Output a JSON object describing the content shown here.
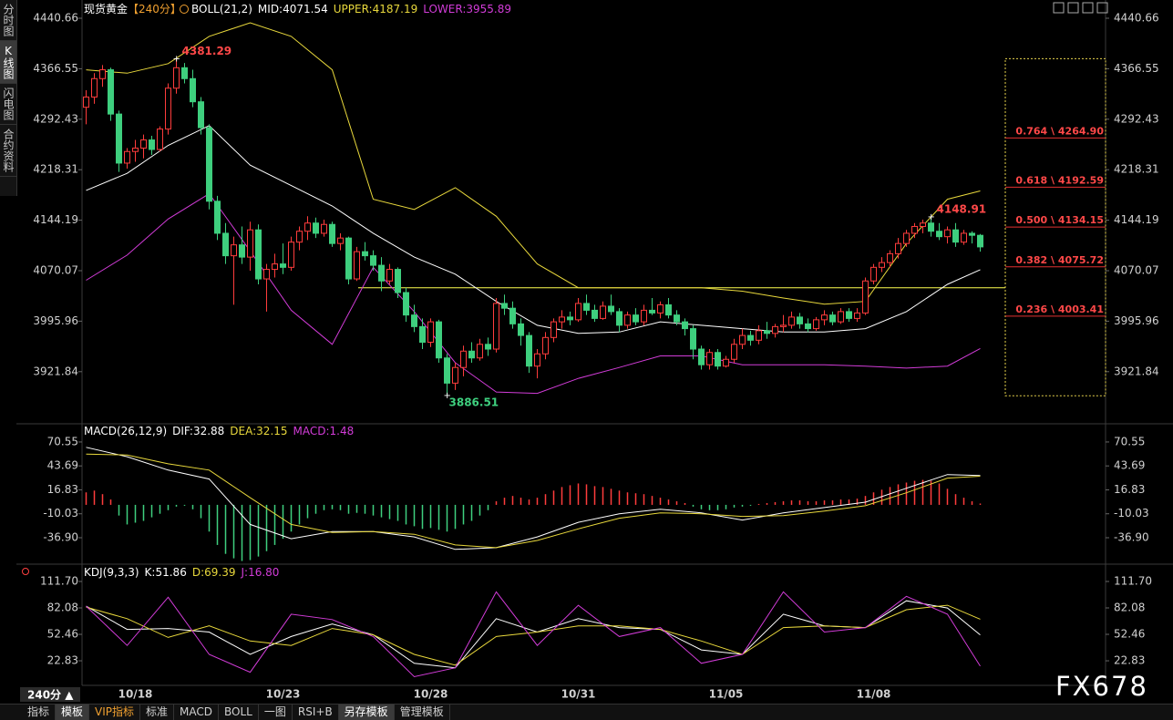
{
  "symbol": "现货黄金",
  "period": "【240分】",
  "period_selector": "240分 ▲",
  "watermark": "FX678",
  "sidebar": [
    "分时图",
    "K线图",
    "闪电图",
    "合约资料"
  ],
  "sidebar_active": 1,
  "toolbar": [
    "指标",
    "模板",
    "VIP指标",
    "标准",
    "MACD",
    "BOLL",
    "一图",
    "RSI+B",
    "另存模板",
    "管理模板"
  ],
  "toolbar_active": [
    1,
    8
  ],
  "toolbar_vip": 2,
  "chart_data": [
    {
      "type": "candlestick",
      "indicator": "BOLL(21,2)",
      "up_color": "#ff3c3c",
      "down_color": "#3ecf7e",
      "categories": [
        null,
        null,
        null,
        null,
        null,
        null,
        "10/18",
        null,
        null,
        null,
        null,
        null,
        null,
        null,
        null,
        null,
        null,
        null,
        null,
        null,
        null,
        null,
        null,
        null,
        "10/23",
        null,
        null,
        null,
        null,
        null,
        null,
        null,
        null,
        null,
        null,
        null,
        null,
        null,
        null,
        null,
        null,
        null,
        "10/28",
        null,
        null,
        null,
        null,
        null,
        null,
        null,
        null,
        null,
        null,
        null,
        null,
        null,
        null,
        null,
        null,
        null,
        "10/31",
        null,
        null,
        null,
        null,
        null,
        null,
        null,
        null,
        null,
        null,
        null,
        null,
        null,
        null,
        null,
        null,
        null,
        "11/05",
        null,
        null,
        null,
        null,
        null,
        null,
        null,
        null,
        null,
        null,
        null,
        null,
        null,
        null,
        null,
        null,
        null,
        "11/08",
        null,
        null,
        null,
        null,
        null,
        null,
        null,
        null,
        null,
        null,
        null,
        null,
        null
      ],
      "open": [
        4310,
        4325,
        4352,
        4365,
        4300,
        4228,
        4245,
        4250,
        4262,
        4248,
        4278,
        4338,
        4368,
        4352,
        4318,
        4280,
        4172,
        4125,
        4092,
        4108,
        4090,
        4130,
        4058,
        4072,
        4080,
        4075,
        4112,
        4128,
        4140,
        4125,
        4138,
        4110,
        4118,
        4058,
        4098,
        4092,
        4078,
        4055,
        4072,
        4038,
        4005,
        3988,
        3965,
        3995,
        3942,
        3905,
        3928,
        3952,
        3942,
        3962,
        3955,
        4022,
        4015,
        3992,
        3975,
        3930,
        3948,
        3972,
        3995,
        4002,
        3998,
        4022,
        4012,
        4000,
        4018,
        4010,
        3990,
        4005,
        3995,
        4012,
        4008,
        4020,
        4005,
        3995,
        3985,
        3955,
        3932,
        3950,
        3930,
        3940,
        3962,
        3975,
        3968,
        3982,
        3978,
        3988,
        3990,
        4002,
        3992,
        3985,
        3998,
        4005,
        3995,
        4010,
        4000,
        4008,
        4055,
        4075,
        4082,
        4095,
        4110,
        4125,
        4135,
        4140,
        4128,
        4120,
        4130,
        4112,
        4125,
        4122
      ],
      "high": [
        4335,
        4360,
        4372,
        4368,
        4305,
        4250,
        4262,
        4270,
        4268,
        4282,
        4345,
        4381.29,
        4375,
        4365,
        4325,
        4285,
        4180,
        4140,
        4120,
        4135,
        4142,
        4138,
        4080,
        4095,
        4110,
        4120,
        4135,
        4150,
        4148,
        4145,
        4142,
        4125,
        4120,
        4105,
        4112,
        4100,
        4090,
        4080,
        4075,
        4045,
        4020,
        4000,
        4000,
        3998,
        3948,
        3935,
        3960,
        3965,
        3970,
        3972,
        4030,
        4035,
        4025,
        4000,
        3980,
        3955,
        3980,
        4000,
        4012,
        4010,
        4030,
        4035,
        4020,
        4025,
        4035,
        4015,
        4010,
        4015,
        4020,
        4030,
        4025,
        4030,
        4012,
        4000,
        3990,
        3960,
        3955,
        3955,
        3945,
        3970,
        3985,
        3982,
        3990,
        3995,
        3992,
        4005,
        4010,
        4008,
        4000,
        4002,
        4012,
        4010,
        4015,
        4015,
        4015,
        4060,
        4080,
        4090,
        4100,
        4118,
        4130,
        4140,
        4145,
        4148.91,
        4140,
        4135,
        4140,
        4130,
        4128,
        4124
      ],
      "low": [
        4285,
        4315,
        4340,
        4290,
        4215,
        4220,
        4230,
        4235,
        4240,
        4245,
        4270,
        4330,
        4345,
        4310,
        4270,
        4160,
        4115,
        4080,
        4020,
        4080,
        4070,
        4050,
        4010,
        4060,
        4065,
        4070,
        4100,
        4115,
        4118,
        4120,
        4105,
        4100,
        4050,
        4055,
        4085,
        4070,
        4040,
        4050,
        4030,
        3995,
        3980,
        3955,
        3958,
        3935,
        3886.51,
        3895,
        3915,
        3935,
        3938,
        3945,
        3950,
        4005,
        3985,
        3960,
        3920,
        3912,
        3940,
        3965,
        3985,
        3990,
        3995,
        4005,
        3995,
        3998,
        4005,
        3980,
        3985,
        3990,
        3990,
        4005,
        4000,
        4000,
        3990,
        3975,
        3940,
        3925,
        3925,
        3925,
        3928,
        3935,
        3955,
        3960,
        3962,
        3970,
        3972,
        3980,
        3985,
        3985,
        3980,
        3982,
        3990,
        3990,
        3992,
        3995,
        3995,
        4005,
        4050,
        4068,
        4075,
        4088,
        4105,
        4118,
        4125,
        4120,
        4115,
        4110,
        4105,
        4108,
        4110,
        4098
      ],
      "close": [
        4325,
        4352,
        4365,
        4300,
        4228,
        4245,
        4250,
        4262,
        4248,
        4278,
        4338,
        4368,
        4352,
        4318,
        4280,
        4172,
        4125,
        4092,
        4108,
        4090,
        4130,
        4058,
        4072,
        4080,
        4075,
        4112,
        4128,
        4140,
        4125,
        4138,
        4110,
        4118,
        4058,
        4098,
        4092,
        4078,
        4055,
        4072,
        4038,
        4005,
        3988,
        3965,
        3995,
        3942,
        3905,
        3928,
        3952,
        3942,
        3962,
        3955,
        4022,
        4015,
        3992,
        3975,
        3930,
        3948,
        3972,
        3995,
        4002,
        3998,
        4022,
        4012,
        4000,
        4018,
        4010,
        3990,
        4005,
        3995,
        4012,
        4008,
        4020,
        4005,
        3995,
        3985,
        3955,
        3932,
        3950,
        3930,
        3940,
        3962,
        3975,
        3968,
        3982,
        3978,
        3988,
        3990,
        4002,
        3992,
        3985,
        3998,
        4005,
        3995,
        4010,
        4000,
        4008,
        4055,
        4075,
        4082,
        4095,
        4110,
        4125,
        4135,
        4140,
        4128,
        4120,
        4130,
        4112,
        4125,
        4122,
        4105
      ],
      "x": [
        0,
        5,
        10,
        15,
        20,
        25,
        30,
        35,
        40,
        45,
        50,
        55,
        60,
        65,
        70,
        75,
        80,
        85,
        90,
        95,
        100,
        105,
        109
      ],
      "series": [
        {
          "name": "MID:",
          "color": "#ffffff",
          "values": [
            4188,
            4213,
            4254,
            4283,
            4225,
            4195,
            4165,
            4125,
            4090,
            4065,
            4025,
            3990,
            3978,
            3980,
            3995,
            3990,
            3985,
            3980,
            3980,
            3985,
            4010,
            4050,
            4071.54
          ]
        },
        {
          "name": "UPPER:",
          "color": "#e8d83c",
          "values": [
            4365,
            4360,
            4374,
            4414,
            4434,
            4414,
            4365,
            4175,
            4160,
            4192,
            4150,
            4080,
            4045,
            4045,
            4045,
            4045,
            4040,
            4030,
            4021,
            4025,
            4110,
            4175,
            4187.19
          ]
        },
        {
          "name": "LOWER:",
          "color": "#d23cd8",
          "values": [
            4056,
            4093,
            4146,
            4183,
            4099,
            4012,
            3962,
            4075,
            4010,
            3935,
            3892,
            3890,
            3912,
            3928,
            3945,
            3945,
            3932,
            3932,
            3932,
            3930,
            3927,
            3930,
            3955.89
          ]
        }
      ],
      "support_line": 4045,
      "fib_levels": [
        {
          "value": 4264.9,
          "label": "0.764 \\ 4264.90"
        },
        {
          "value": 4192.59,
          "label": "0.618 \\ 4192.59"
        },
        {
          "value": 4134.15,
          "label": "0.500 \\ 4134.15"
        },
        {
          "value": 4075.72,
          "label": "0.382 \\ 4075.72"
        },
        {
          "value": 4003.41,
          "label": "0.236 \\ 4003.41"
        }
      ],
      "ylim": [
        3848,
        4440.66
      ],
      "yticks": [
        4440.66,
        4366.55,
        4292.43,
        4218.31,
        4144.19,
        4070.07,
        3995.96,
        3921.84
      ]
    },
    {
      "type": "macd",
      "title": "MACD(26,12,9)",
      "x": [
        0,
        5,
        10,
        15,
        20,
        25,
        30,
        35,
        40,
        45,
        50,
        55,
        60,
        65,
        70,
        75,
        80,
        85,
        90,
        95,
        100,
        105,
        109
      ],
      "series": [
        {
          "name": "DIF:",
          "color": "#ffffff",
          "values": [
            64.6,
            54,
            39,
            29,
            -22,
            -38,
            -30,
            -30,
            -36,
            -50,
            -48,
            -36,
            -19.6,
            -10,
            -5,
            -9,
            -17,
            -9,
            -3,
            3,
            18.6,
            34,
            32.88
          ]
        },
        {
          "name": "DEA:",
          "color": "#e8d83c",
          "values": [
            57,
            56,
            46,
            39,
            8,
            -22,
            -31,
            -30,
            -33,
            -45,
            -48,
            -40,
            -27,
            -15,
            -9,
            -10,
            -13,
            -12,
            -7,
            -1,
            13.5,
            30,
            32.15
          ]
        }
      ],
      "histogram": {
        "name": "MACD:",
        "color": "#d23cd8",
        "up_color": "#ff3c3c",
        "down_color": "#3ecf7e",
        "values": [
          14,
          16,
          12,
          6,
          -12,
          -22,
          -20,
          -18,
          -14,
          -10,
          -6,
          -2,
          -1,
          -5,
          -15,
          -30,
          -45,
          -55,
          -60,
          -63,
          -62,
          -58,
          -52,
          -45,
          -38,
          -30,
          -22,
          -15,
          -10,
          -6,
          -5,
          -6,
          -10,
          -9,
          -10,
          -12,
          -14,
          -16,
          -18,
          -22,
          -24,
          -27,
          -26,
          -28,
          -30,
          -27,
          -22,
          -18,
          -12,
          -6,
          4,
          8,
          10,
          8,
          6,
          8,
          12,
          16,
          20,
          22,
          24,
          23,
          21,
          20,
          18,
          16,
          14,
          13,
          12,
          10,
          8,
          6,
          4,
          2,
          -2,
          -5,
          -6,
          -6,
          -5,
          -3,
          -2,
          -1,
          1,
          2,
          3,
          4,
          5,
          5,
          4,
          4,
          5,
          5,
          6,
          6,
          7,
          10,
          14,
          17,
          20,
          23,
          25,
          27,
          28,
          27,
          24,
          18,
          12,
          8,
          4,
          1.48
        ]
      },
      "ylim": [
        -64.5,
        88.9
      ],
      "yticks": [
        70.55,
        43.69,
        16.83,
        -10.03,
        {
          "value": -36.9,
          "label": "-36.90"
        }
      ]
    },
    {
      "type": "kdj",
      "title": "KDJ(9,3,3)",
      "x": [
        0,
        5,
        10,
        15,
        20,
        25,
        30,
        35,
        40,
        45,
        50,
        55,
        60,
        65,
        70,
        75,
        80,
        85,
        90,
        95,
        100,
        105,
        109
      ],
      "series": [
        {
          "name": "K:",
          "color": "#ffffff",
          "values": [
            84,
            58,
            59,
            55,
            30,
            50,
            64,
            52,
            20,
            15,
            70,
            55,
            70,
            60,
            58,
            35,
            30,
            75,
            62,
            60,
            90,
            82,
            51.86
          ]
        },
        {
          "name": "D:",
          "color": "#e8d83c",
          "values": [
            83,
            70,
            49,
            62,
            45,
            40,
            59,
            52,
            30,
            18,
            50,
            55,
            62,
            62,
            58,
            45,
            30,
            60,
            62,
            60,
            80,
            85,
            69.39
          ]
        },
        {
          "name": "J:",
          "color": "#d23cd8",
          "values": [
            84,
            40,
            94,
            30,
            10,
            75,
            69,
            50,
            5,
            15,
            100,
            40,
            85,
            50,
            60,
            20,
            30,
            100,
            55,
            60,
            95,
            75,
            16.8
          ],
          "value_labels": [
            null,
            null,
            null,
            null,
            null,
            null,
            null,
            null,
            null,
            null,
            null,
            null,
            null,
            null,
            null,
            null,
            null,
            null,
            null,
            null,
            null,
            null,
            "16.80"
          ]
        }
      ],
      "ylim": [
        -4.7,
        127
      ],
      "yticks": [
        {
          "value": 111.7,
          "label": "111.70"
        },
        82.08,
        52.46,
        22.83
      ]
    }
  ]
}
